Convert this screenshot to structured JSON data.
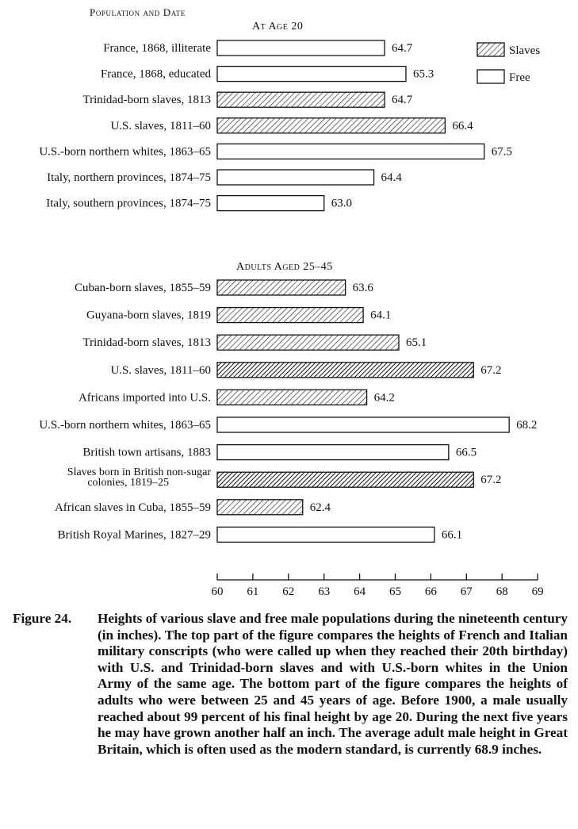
{
  "chart_data": {
    "type": "bar",
    "orientation": "horizontal",
    "header": "Population and Date",
    "x_ticks": [
      60,
      61,
      62,
      63,
      64,
      65,
      66,
      67,
      68,
      69
    ],
    "xlim": [
      60,
      69
    ],
    "legend": [
      {
        "name": "Slaves",
        "pattern": "hatched"
      },
      {
        "name": "Free",
        "pattern": "open"
      }
    ],
    "legend_position": "top-right",
    "grid": false,
    "panels": [
      {
        "title": "At Age 20",
        "bars": [
          {
            "label": "France, 1868, illiterate",
            "value": 64.7,
            "value_label": "64.7",
            "group": "Free"
          },
          {
            "label": "France, 1868, educated",
            "value": 65.3,
            "value_label": "65.3",
            "group": "Free"
          },
          {
            "label": "Trinidad-born slaves, 1813",
            "value": 64.7,
            "value_label": "64.7",
            "group": "Slaves"
          },
          {
            "label": "U.S. slaves, 1811–60",
            "value": 66.4,
            "value_label": "66.4",
            "group": "Slaves"
          },
          {
            "label": "U.S.-born northern whites, 1863–65",
            "value": 67.5,
            "value_label": "67.5",
            "group": "Free"
          },
          {
            "label": "Italy, northern provinces, 1874–75",
            "value": 64.4,
            "value_label": "64.4",
            "group": "Free"
          },
          {
            "label": "Italy, southern provinces, 1874–75",
            "value": 63.0,
            "value_label": "63.0",
            "group": "Free"
          }
        ]
      },
      {
        "title": "Adults Aged 25–45",
        "bars": [
          {
            "label": "Cuban-born slaves, 1855–59",
            "value": 63.6,
            "value_label": "63.6",
            "group": "Slaves"
          },
          {
            "label": "Guyana-born slaves, 1819",
            "value": 64.1,
            "value_label": "64.1",
            "group": "Slaves"
          },
          {
            "label": "Trinidad-born slaves, 1813",
            "value": 65.1,
            "value_label": "65.1",
            "group": "Slaves"
          },
          {
            "label": "U.S. slaves, 1811–60",
            "value": 67.2,
            "value_label": "67.2",
            "group": "Slaves",
            "emphasis": true
          },
          {
            "label": "Africans imported into U.S.",
            "value": 64.2,
            "value_label": "64.2",
            "group": "Slaves"
          },
          {
            "label": "U.S.-born northern whites, 1863–65",
            "value": 68.2,
            "value_label": "68.2",
            "group": "Free"
          },
          {
            "label": "British town artisans, 1883",
            "value": 66.5,
            "value_label": "66.5",
            "group": "Free"
          },
          {
            "label": "Slaves born in British non-sugar colonies, 1819–25",
            "label_lines": [
              "Slaves born in British non-sugar",
              "colonies, 1819–25"
            ],
            "value": 67.2,
            "value_label": "67.2",
            "group": "Slaves",
            "emphasis": true
          },
          {
            "label": "African slaves in Cuba, 1855–59",
            "value": 62.4,
            "value_label": "62.4",
            "group": "Slaves"
          },
          {
            "label": "British Royal Marines, 1827–29",
            "value": 66.1,
            "value_label": "66.1",
            "group": "Free"
          }
        ]
      }
    ]
  },
  "caption": {
    "label": "Figure 24.",
    "text": "Heights of various slave and free male populations during the nineteenth century (in inches). The top part of the figure compares the heights of French and Italian military conscripts (who were called up when they reached their 20th birthday) with U.S. and Trinidad-born slaves and with U.S.-born whites in the Union Army of the same age. The bottom part of the figure compares the heights of adults who were between 25 and 45 years of age. Before 1900, a male usually reached about 99 percent of his final height by age 20. During the next five years he may have grown another half an inch. The average adult male height in Great Britain, which is often used as the modern standard, is currently 68.9 inches."
  }
}
